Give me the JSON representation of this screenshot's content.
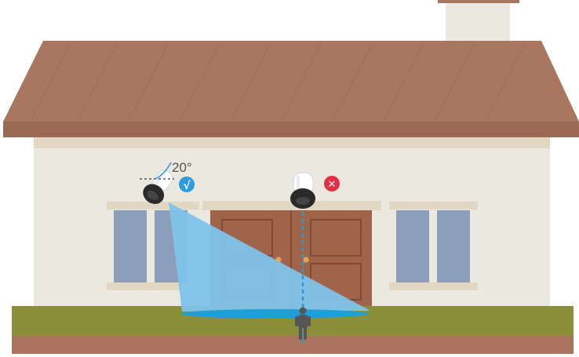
{
  "diagram": {
    "angle_label": "20°",
    "correct_mark": "√",
    "incorrect_mark": "✕",
    "colors": {
      "roof": "#a97660",
      "roof_edge": "#9a6a52",
      "wall": "#ebe8df",
      "trim": "#e2d7c3",
      "window_glass": "#8b9fba",
      "door": "#a0644a",
      "grass": "#8b8f3a",
      "soil": "#a9735e",
      "beam": "#7fc3ea",
      "beam_floor": "#1f9ed8",
      "correct_badge": "#2d9be0",
      "incorrect_badge": "#e32f45"
    }
  }
}
